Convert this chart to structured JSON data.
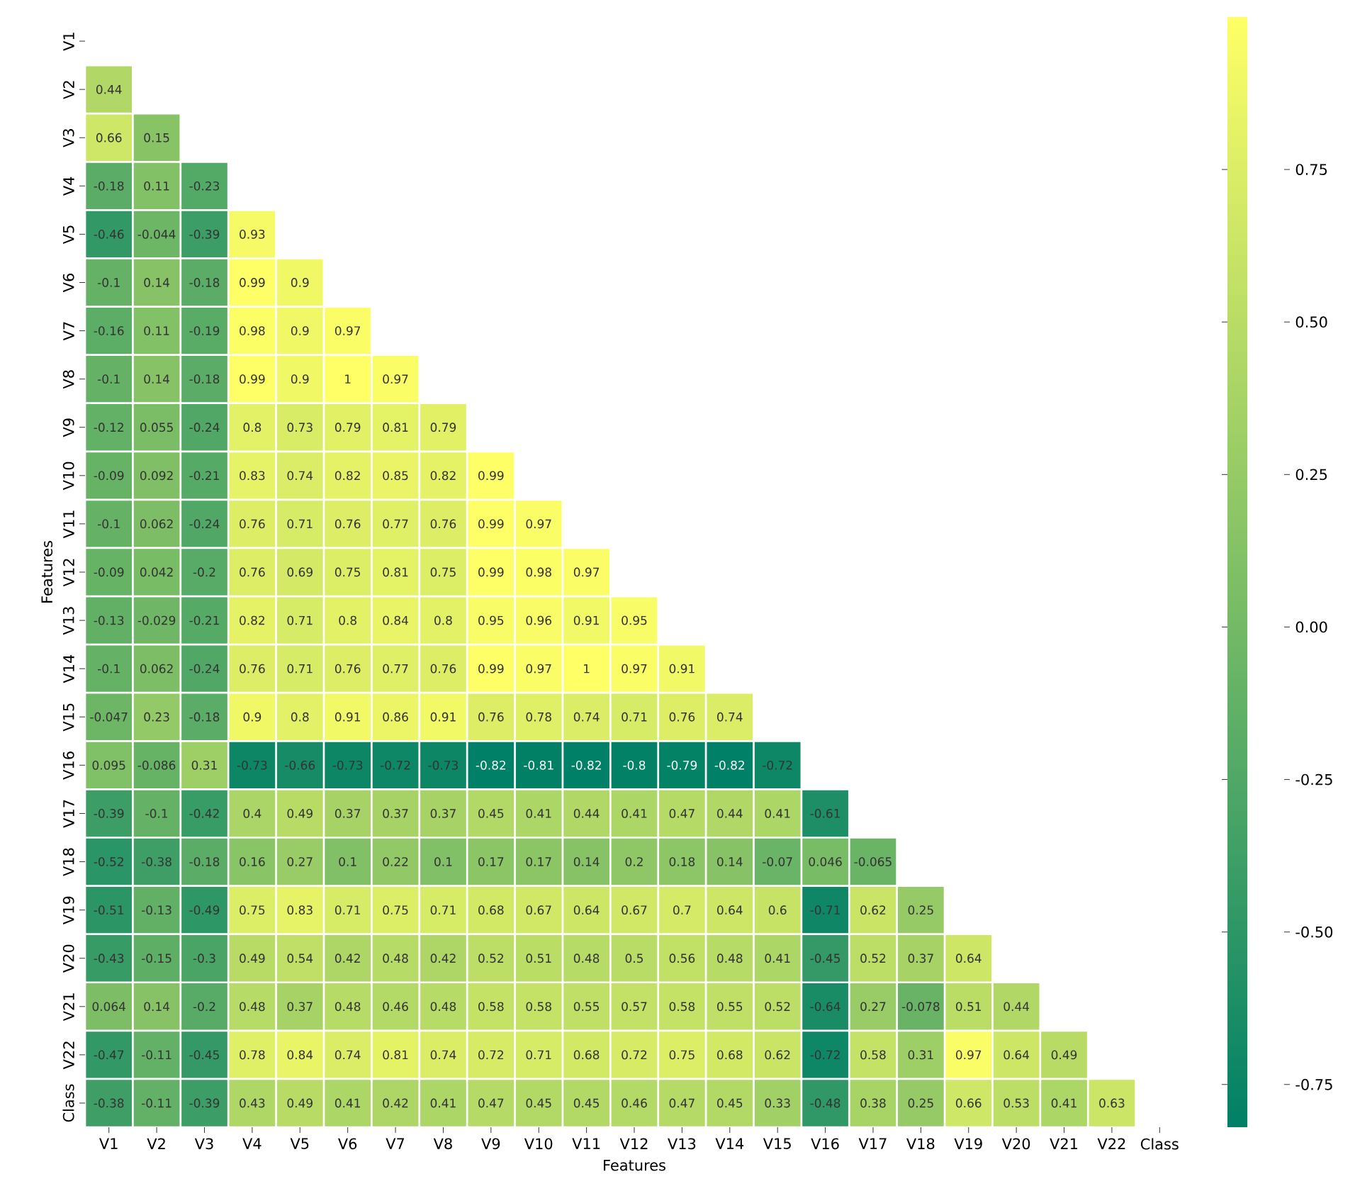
{
  "chart_data": {
    "type": "heatmap",
    "xlabel": "Features",
    "ylabel": "Features",
    "data_labels": true,
    "categories": [
      "V1",
      "V2",
      "V3",
      "V4",
      "V5",
      "V6",
      "V7",
      "V8",
      "V9",
      "V10",
      "V11",
      "V12",
      "V13",
      "V14",
      "V15",
      "V16",
      "V17",
      "V18",
      "V19",
      "V20",
      "V21",
      "V22",
      "Class"
    ],
    "y_categories": [
      "V1",
      "V2",
      "V3",
      "V4",
      "V5",
      "V6",
      "V7",
      "V8",
      "V9",
      "V10",
      "V11",
      "V12",
      "V13",
      "V14",
      "V15",
      "V16",
      "V17",
      "V18",
      "V19",
      "V20",
      "V21",
      "V22",
      "Class"
    ],
    "clim": [
      -0.82,
      1
    ],
    "cticks": [
      -0.75,
      {
        "value": -0.5,
        "label": "-0.50"
      },
      -0.25,
      {
        "value": 0,
        "label": "0.00"
      },
      0.25,
      {
        "value": 0.5,
        "label": "0.50"
      },
      0.75
    ],
    "cells": [
      [
        null,
        null,
        null,
        null,
        null,
        null,
        null,
        null,
        null,
        null,
        null,
        null,
        null,
        null,
        null,
        null,
        null,
        null,
        null,
        null,
        null,
        null,
        null
      ],
      [
        0.44,
        null,
        null,
        null,
        null,
        null,
        null,
        null,
        null,
        null,
        null,
        null,
        null,
        null,
        null,
        null,
        null,
        null,
        null,
        null,
        null,
        null,
        null
      ],
      [
        0.66,
        0.15,
        null,
        null,
        null,
        null,
        null,
        null,
        null,
        null,
        null,
        null,
        null,
        null,
        null,
        null,
        null,
        null,
        null,
        null,
        null,
        null,
        null
      ],
      [
        -0.18,
        0.11,
        -0.23,
        null,
        null,
        null,
        null,
        null,
        null,
        null,
        null,
        null,
        null,
        null,
        null,
        null,
        null,
        null,
        null,
        null,
        null,
        null,
        null
      ],
      [
        -0.46,
        -0.044,
        -0.39,
        0.93,
        null,
        null,
        null,
        null,
        null,
        null,
        null,
        null,
        null,
        null,
        null,
        null,
        null,
        null,
        null,
        null,
        null,
        null,
        null
      ],
      [
        -0.1,
        0.14,
        -0.18,
        0.99,
        0.9,
        null,
        null,
        null,
        null,
        null,
        null,
        null,
        null,
        null,
        null,
        null,
        null,
        null,
        null,
        null,
        null,
        null,
        null
      ],
      [
        -0.16,
        0.11,
        -0.19,
        0.98,
        0.9,
        0.97,
        null,
        null,
        null,
        null,
        null,
        null,
        null,
        null,
        null,
        null,
        null,
        null,
        null,
        null,
        null,
        null,
        null
      ],
      [
        -0.1,
        0.14,
        -0.18,
        0.99,
        0.9,
        1,
        0.97,
        null,
        null,
        null,
        null,
        null,
        null,
        null,
        null,
        null,
        null,
        null,
        null,
        null,
        null,
        null,
        null
      ],
      [
        -0.12,
        0.055,
        -0.24,
        0.8,
        0.73,
        0.79,
        0.81,
        0.79,
        null,
        null,
        null,
        null,
        null,
        null,
        null,
        null,
        null,
        null,
        null,
        null,
        null,
        null,
        null
      ],
      [
        -0.09,
        0.092,
        -0.21,
        0.83,
        0.74,
        0.82,
        0.85,
        0.82,
        0.99,
        null,
        null,
        null,
        null,
        null,
        null,
        null,
        null,
        null,
        null,
        null,
        null,
        null,
        null
      ],
      [
        -0.1,
        0.062,
        -0.24,
        0.76,
        0.71,
        0.76,
        0.77,
        0.76,
        0.99,
        0.97,
        null,
        null,
        null,
        null,
        null,
        null,
        null,
        null,
        null,
        null,
        null,
        null,
        null
      ],
      [
        -0.09,
        0.042,
        -0.2,
        0.76,
        0.69,
        0.75,
        0.81,
        0.75,
        0.99,
        0.98,
        0.97,
        null,
        null,
        null,
        null,
        null,
        null,
        null,
        null,
        null,
        null,
        null,
        null
      ],
      [
        -0.13,
        -0.029,
        -0.21,
        0.82,
        0.71,
        0.8,
        0.84,
        0.8,
        0.95,
        0.96,
        0.91,
        0.95,
        null,
        null,
        null,
        null,
        null,
        null,
        null,
        null,
        null,
        null,
        null
      ],
      [
        -0.1,
        0.062,
        -0.24,
        0.76,
        0.71,
        0.76,
        0.77,
        0.76,
        0.99,
        0.97,
        1,
        0.97,
        0.91,
        null,
        null,
        null,
        null,
        null,
        null,
        null,
        null,
        null,
        null
      ],
      [
        -0.047,
        0.23,
        -0.18,
        0.9,
        0.8,
        0.91,
        0.86,
        0.91,
        0.76,
        0.78,
        0.74,
        0.71,
        0.76,
        0.74,
        null,
        null,
        null,
        null,
        null,
        null,
        null,
        null,
        null
      ],
      [
        0.095,
        -0.086,
        0.31,
        -0.73,
        -0.66,
        -0.73,
        -0.72,
        -0.73,
        -0.82,
        -0.81,
        -0.82,
        -0.8,
        -0.79,
        -0.82,
        -0.72,
        null,
        null,
        null,
        null,
        null,
        null,
        null,
        null
      ],
      [
        -0.39,
        -0.1,
        -0.42,
        0.4,
        0.49,
        0.37,
        0.37,
        0.37,
        0.45,
        0.41,
        0.44,
        0.41,
        0.47,
        0.44,
        0.41,
        -0.61,
        null,
        null,
        null,
        null,
        null,
        null,
        null
      ],
      [
        -0.52,
        -0.38,
        -0.18,
        0.16,
        0.27,
        0.1,
        0.22,
        0.1,
        0.17,
        0.17,
        0.14,
        0.2,
        0.18,
        0.14,
        -0.07,
        0.046,
        -0.065,
        null,
        null,
        null,
        null,
        null,
        null
      ],
      [
        -0.51,
        -0.13,
        -0.49,
        0.75,
        0.83,
        0.71,
        0.75,
        0.71,
        0.68,
        0.67,
        0.64,
        0.67,
        0.7,
        0.64,
        0.6,
        -0.71,
        0.62,
        0.25,
        null,
        null,
        null,
        null,
        null
      ],
      [
        -0.43,
        -0.15,
        -0.3,
        0.49,
        0.54,
        0.42,
        0.48,
        0.42,
        0.52,
        0.51,
        0.48,
        0.5,
        0.56,
        0.48,
        0.41,
        -0.45,
        0.52,
        0.37,
        0.64,
        null,
        null,
        null,
        null
      ],
      [
        0.064,
        0.14,
        -0.2,
        0.48,
        0.37,
        0.48,
        0.46,
        0.48,
        0.58,
        0.58,
        0.55,
        0.57,
        0.58,
        0.55,
        0.52,
        -0.64,
        0.27,
        -0.078,
        0.51,
        0.44,
        null,
        null,
        null
      ],
      [
        -0.47,
        -0.11,
        -0.45,
        0.78,
        0.84,
        0.74,
        0.81,
        0.74,
        0.72,
        0.71,
        0.68,
        0.72,
        0.75,
        0.68,
        0.62,
        -0.72,
        0.58,
        0.31,
        0.97,
        0.64,
        0.49,
        null,
        null
      ],
      [
        -0.38,
        -0.11,
        -0.39,
        0.43,
        0.49,
        0.41,
        0.42,
        0.41,
        0.47,
        0.45,
        0.45,
        0.46,
        0.47,
        0.45,
        0.33,
        -0.48,
        0.38,
        0.25,
        0.66,
        0.53,
        0.41,
        0.63,
        null
      ]
    ]
  }
}
